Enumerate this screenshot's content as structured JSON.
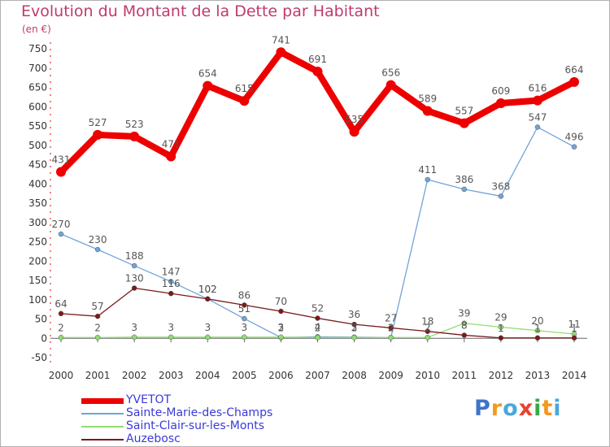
{
  "title": "Evolution du Montant de la Dette par Habitant",
  "unit_label": "(en €)",
  "brand": {
    "text": "Proxiti",
    "colors": [
      "#3f74c8",
      "#f19a1f",
      "#4aa8d8",
      "#e8432c",
      "#3aa84a",
      "#f19a1f",
      "#4aa8d8"
    ]
  },
  "chart_data": {
    "type": "line",
    "title": "Evolution du Montant de la Dette par Habitant",
    "ylabel": "(en €)",
    "x": [
      "2000",
      "2001",
      "2002",
      "2003",
      "2004",
      "2005",
      "2006",
      "2007",
      "2008",
      "2009",
      "2010",
      "2011",
      "2012",
      "2013",
      "2014"
    ],
    "ylim": [
      -50,
      750
    ],
    "yticks": [
      -50,
      0,
      50,
      100,
      150,
      200,
      250,
      300,
      350,
      400,
      450,
      500,
      550,
      600,
      650,
      700,
      750
    ],
    "grid": false,
    "legend_position": "bottom-left",
    "series": [
      {
        "name": "YVETOT",
        "color": "#ee0000",
        "values": [
          431,
          527,
          523,
          471,
          654,
          615,
          741,
          691,
          535,
          656,
          589,
          557,
          609,
          616,
          664
        ],
        "labels": [
          "431",
          "527",
          "523",
          "471",
          "654",
          "615",
          "741",
          "691",
          "535",
          "656",
          "589",
          "557",
          "609",
          "616",
          "664"
        ]
      },
      {
        "name": "Sainte-Marie-des-Champs",
        "color": "#70a4d8",
        "values": [
          270,
          230,
          188,
          147,
          102,
          51,
          2,
          4,
          3,
          2,
          411,
          386,
          368,
          547,
          496
        ],
        "labels": [
          "270",
          "230",
          "188",
          "147",
          "102",
          "51",
          "2",
          "4",
          "3",
          "2",
          "411",
          "386",
          "368",
          "547",
          "496"
        ]
      },
      {
        "name": "Saint-Clair-sur-les-Monts",
        "color": "#90dd70",
        "values": [
          2,
          2,
          3,
          3,
          3,
          3,
          3,
          2,
          2,
          2,
          2,
          39,
          29,
          20,
          11
        ],
        "labels": [
          "2",
          "2",
          "3",
          "3",
          "3",
          "3",
          "3",
          "2",
          "2",
          "2",
          "2",
          "39",
          "29",
          "20",
          "11"
        ]
      },
      {
        "name": "Auzebosc",
        "color": "#7a1a1a",
        "values": [
          64,
          57,
          130,
          116,
          102,
          86,
          70,
          52,
          36,
          27,
          18,
          8,
          1,
          1,
          1
        ],
        "labels": [
          "64",
          "57",
          "130",
          "116",
          "102",
          "86",
          "70",
          "52",
          "36",
          "27",
          "18",
          "8",
          "1",
          "1",
          "1"
        ]
      }
    ]
  }
}
